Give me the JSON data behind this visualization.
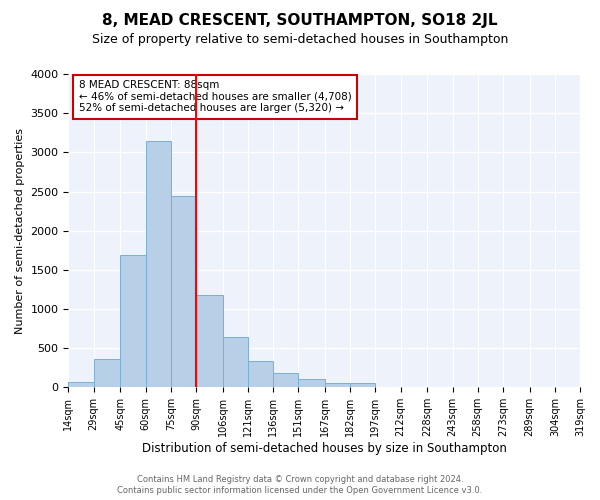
{
  "title": "8, MEAD CRESCENT, SOUTHAMPTON, SO18 2JL",
  "subtitle": "Size of property relative to semi-detached houses in Southampton",
  "xlabel": "Distribution of semi-detached houses by size in Southampton",
  "ylabel": "Number of semi-detached properties",
  "bar_color": "#b8cfe8",
  "bar_edge_color": "#7aafd4",
  "vline_x": 90,
  "vline_color": "red",
  "annotation_title": "8 MEAD CRESCENT: 88sqm",
  "annotation_line1": "← 46% of semi-detached houses are smaller (4,708)",
  "annotation_line2": "52% of semi-detached houses are larger (5,320) →",
  "bin_edges": [
    14,
    29,
    45,
    60,
    75,
    90,
    106,
    121,
    136,
    151,
    167,
    182,
    197,
    212,
    228,
    243,
    258,
    273,
    289,
    304,
    319
  ],
  "bin_counts": [
    70,
    360,
    1690,
    3150,
    2440,
    1180,
    640,
    330,
    185,
    110,
    55,
    50,
    10,
    5,
    2,
    1,
    1,
    0,
    0,
    0
  ],
  "tick_labels": [
    "14sqm",
    "29sqm",
    "45sqm",
    "60sqm",
    "75sqm",
    "90sqm",
    "106sqm",
    "121sqm",
    "136sqm",
    "151sqm",
    "167sqm",
    "182sqm",
    "197sqm",
    "212sqm",
    "228sqm",
    "243sqm",
    "258sqm",
    "273sqm",
    "289sqm",
    "304sqm",
    "319sqm"
  ],
  "ylim": [
    0,
    4000
  ],
  "yticks": [
    0,
    500,
    1000,
    1500,
    2000,
    2500,
    3000,
    3500,
    4000
  ],
  "footer1": "Contains HM Land Registry data © Crown copyright and database right 2024.",
  "footer2": "Contains public sector information licensed under the Open Government Licence v3.0.",
  "background_color": "#ffffff",
  "plot_bg_color": "#eef2fb",
  "grid_color": "white",
  "title_fontsize": 11,
  "subtitle_fontsize": 9,
  "annotation_box_color": "white",
  "annotation_box_edge": "#cc0000"
}
